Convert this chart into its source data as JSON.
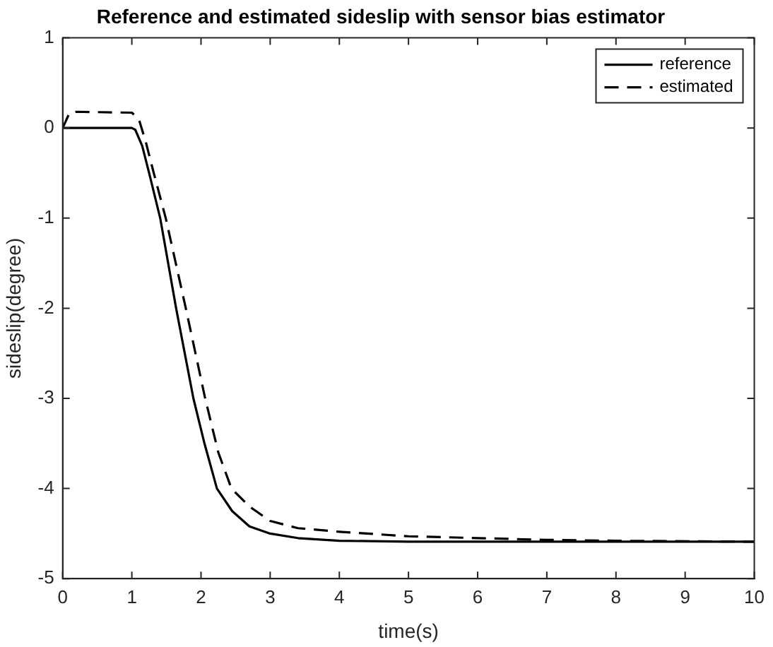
{
  "chart_data": {
    "type": "line",
    "title": "Reference and estimated sideslip with sensor bias estimator",
    "xlabel": "time(s)",
    "ylabel": "sideslip(degree)",
    "xlim": [
      0,
      10
    ],
    "xticks": [
      0,
      1,
      2,
      3,
      4,
      5,
      6,
      7,
      8,
      9,
      10
    ],
    "ylim": [
      -5,
      1
    ],
    "yticks": [
      -5,
      -4,
      -3,
      -2,
      -1,
      0,
      1
    ],
    "grid": false,
    "legend": "top right",
    "series": [
      {
        "name": "reference",
        "color": "#000000",
        "line_style": "solid",
        "x": [
          0,
          1,
          1.05,
          1.15,
          1.25,
          1.41,
          1.64,
          1.89,
          2.05,
          2.23,
          2.45,
          2.7,
          3,
          3.4,
          4,
          5,
          7,
          10
        ],
        "values": [
          0,
          0,
          -0.02,
          -0.2,
          -0.5,
          -1,
          -2,
          -3,
          -3.5,
          -4,
          -4.25,
          -4.42,
          -4.5,
          -4.55,
          -4.58,
          -4.59,
          -4.59,
          -4.59
        ]
      },
      {
        "name": "estimated",
        "color": "#000000",
        "line_style": "dashed",
        "x": [
          0,
          0.1,
          0.2,
          1,
          1.1,
          1.2,
          1.3,
          1.49,
          1.78,
          2.06,
          2.25,
          2.44,
          2.7,
          3,
          3.4,
          4,
          5,
          6,
          7,
          8,
          10
        ],
        "values": [
          0,
          0.17,
          0.18,
          0.17,
          0.1,
          -0.15,
          -0.45,
          -1,
          -2,
          -3,
          -3.6,
          -4,
          -4.2,
          -4.36,
          -4.44,
          -4.48,
          -4.53,
          -4.55,
          -4.57,
          -4.58,
          -4.59
        ]
      }
    ]
  }
}
